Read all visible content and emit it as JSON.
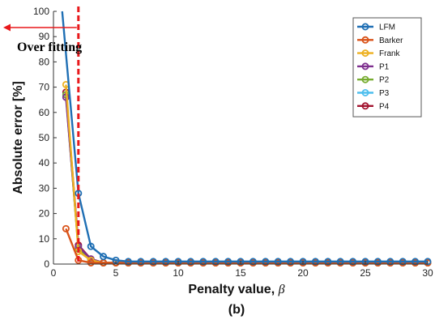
{
  "chart_data": {
    "type": "line",
    "xlabel": "Penalty value, ",
    "xlabel_symbol": "β",
    "ylabel": "Absolute error [%]",
    "subtitle": "(b)",
    "xlim": [
      0,
      30
    ],
    "ylim": [
      0,
      100
    ],
    "xticks": [
      0,
      5,
      10,
      15,
      20,
      25,
      30
    ],
    "yticks": [
      0,
      10,
      20,
      30,
      40,
      50,
      60,
      70,
      80,
      90,
      100
    ],
    "grid": false,
    "legend_position": "top-right",
    "annotation": {
      "text": "Over fitting",
      "threshold_x": 2,
      "arrow_direction": "left",
      "color": "#e8191c"
    },
    "x": [
      1,
      2,
      3,
      4,
      5,
      6,
      7,
      8,
      9,
      10,
      11,
      12,
      13,
      14,
      15,
      16,
      17,
      18,
      19,
      20,
      21,
      22,
      23,
      24,
      25,
      26,
      27,
      28,
      29,
      30
    ],
    "series": [
      {
        "name": "LFM",
        "color": "#1f6fb4",
        "lead_in": [
          [
            0.7,
            100
          ]
        ],
        "values": [
          null,
          28,
          7,
          3,
          1.5,
          1,
          1,
          1,
          1,
          1,
          1,
          1,
          1,
          1,
          1,
          1,
          1,
          1,
          1,
          1,
          1,
          1,
          1,
          1,
          1,
          1,
          1,
          1,
          1,
          1
        ]
      },
      {
        "name": "Barker",
        "color": "#d95319",
        "values": [
          14,
          1.5,
          0.5,
          0.5,
          0.5,
          0.5,
          0.5,
          0.5,
          0.5,
          0.5,
          0.5,
          0.5,
          0.5,
          0.5,
          0.5,
          0.5,
          0.5,
          0.5,
          0.5,
          0.5,
          0.5,
          0.5,
          0.5,
          0.5,
          0.5,
          0.5,
          0.5,
          0.5,
          0.5,
          0.5
        ]
      },
      {
        "name": "Frank",
        "color": "#edb120",
        "values": [
          71,
          5,
          1.5,
          0.5,
          0.5,
          0.5,
          0.5,
          0.5,
          0.5,
          0.5,
          0.5,
          0.5,
          0.5,
          0.5,
          0.5,
          0.5,
          0.5,
          0.5,
          0.5,
          0.5,
          0.5,
          0.5,
          0.5,
          0.5,
          0.5,
          0.5,
          0.5,
          0.5,
          0.5,
          0.5
        ]
      },
      {
        "name": "P1",
        "color": "#7e2f8e",
        "values": [
          66,
          7,
          2,
          0.5,
          0.5,
          0.5,
          0.5,
          0.5,
          0.5,
          0.5,
          0.5,
          0.5,
          0.5,
          0.5,
          0.5,
          0.5,
          0.5,
          0.5,
          0.5,
          0.5,
          0.5,
          0.5,
          0.5,
          0.5,
          0.5,
          0.5,
          0.5,
          0.5,
          0.5,
          0.5
        ]
      },
      {
        "name": "P2",
        "color": "#77ac30",
        "values": [
          67,
          6,
          1.5,
          0.5,
          0.5,
          0.5,
          0.5,
          0.5,
          0.5,
          0.5,
          0.5,
          0.5,
          0.5,
          0.5,
          0.5,
          0.5,
          0.5,
          0.5,
          0.5,
          0.5,
          0.5,
          0.5,
          0.5,
          0.5,
          0.5,
          0.5,
          0.5,
          0.5,
          0.5,
          0.5
        ]
      },
      {
        "name": "P3",
        "color": "#4dbeee",
        "values": [
          67,
          6,
          1.5,
          0.5,
          0.5,
          0.5,
          0.5,
          0.5,
          0.5,
          0.5,
          0.5,
          0.5,
          0.5,
          0.5,
          0.5,
          0.5,
          0.5,
          0.5,
          0.5,
          0.5,
          0.5,
          0.5,
          0.5,
          0.5,
          0.5,
          0.5,
          0.5,
          0.5,
          0.5,
          0.5
        ]
      },
      {
        "name": "P4",
        "color": "#a2142f",
        "values": [
          68,
          7.5,
          2,
          0.5,
          0.5,
          0.5,
          0.5,
          0.5,
          0.5,
          0.5,
          0.5,
          0.5,
          0.5,
          0.5,
          0.5,
          0.5,
          0.5,
          0.5,
          0.5,
          0.5,
          0.5,
          0.5,
          0.5,
          0.5,
          0.5,
          0.5,
          0.5,
          0.5,
          0.5,
          0.5
        ]
      }
    ]
  }
}
